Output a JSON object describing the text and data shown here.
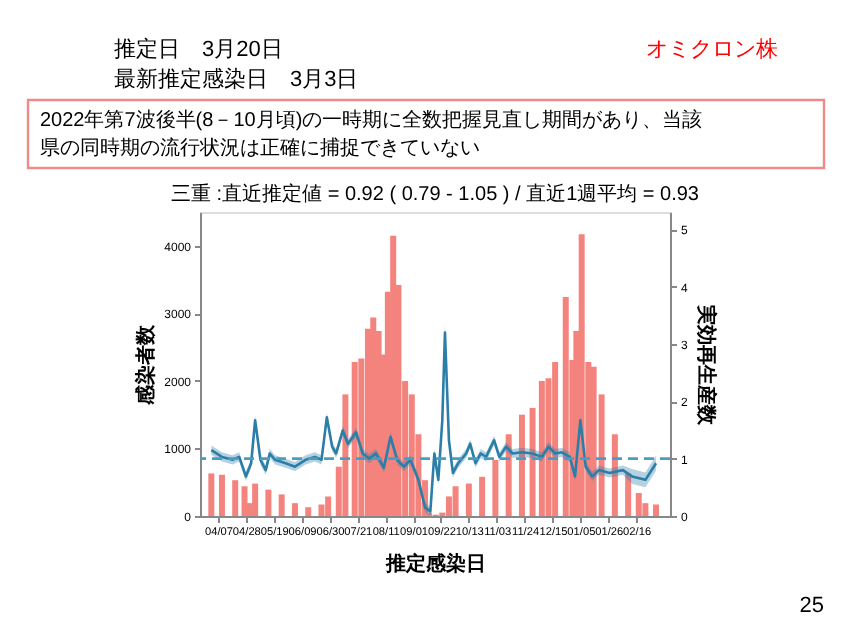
{
  "chart_data": {
    "type": "bar",
    "title": "三重 :直近推定値 = 0.92 ( 0.79 - 1.05 ) / 直近1週平均 = 0.93",
    "xlabel": "推定感染日",
    "ylabel": "感染者数",
    "y2label": "実効再生産数",
    "annotations": [
      "推定日　3月20日",
      "最新推定感染日　3月3日",
      "オミクロン株",
      "2022年第7波後半(8－10月頃)の一時期に全数把握見直し期間があり、当該県の同時期の流行状況は正確に捕捉できていない",
      "25"
    ],
    "xlim": [
      "2022-04-01",
      "2023-03-06"
    ],
    "xticks": [
      {
        "value": "2022-04-07",
        "label": "04/07"
      },
      {
        "value": "2022-04-28",
        "label": "04/28"
      },
      {
        "value": "2022-05-19",
        "label": "05/19"
      },
      {
        "value": "2022-06-09",
        "label": "06/09"
      },
      {
        "value": "2022-06-30",
        "label": "06/30"
      },
      {
        "value": "2022-07-21",
        "label": "07/21"
      },
      {
        "value": "2022-08-11",
        "label": "08/11"
      },
      {
        "value": "2022-09-01",
        "label": "09/01"
      },
      {
        "value": "2022-09-22",
        "label": "09/22"
      },
      {
        "value": "2022-10-13",
        "label": "10/13"
      },
      {
        "value": "2022-11-03",
        "label": "11/03"
      },
      {
        "value": "2022-11-24",
        "label": "11/24"
      },
      {
        "value": "2022-12-15",
        "label": "12/15"
      },
      {
        "value": "2023-01-05",
        "label": "01/05"
      },
      {
        "value": "2023-01-26",
        "label": "01/26"
      },
      {
        "value": "2023-02-16",
        "label": "02/16"
      }
    ],
    "ylim": [
      0,
      4500
    ],
    "yticks": [
      0,
      1000,
      2000,
      3000,
      4000
    ],
    "y2lim": [
      0,
      5.3
    ],
    "y2ticks": [
      0,
      1,
      2,
      3,
      4,
      5
    ],
    "grid": false,
    "ref_lines": [
      {
        "axis": "y2",
        "value": 1,
        "color": "#4a9cc0",
        "line_style": "dashed"
      }
    ],
    "series": [
      {
        "color": "#f4837d",
        "x": [
          "2022-04-02",
          "2022-04-10",
          "2022-04-20",
          "2022-04-27",
          "2022-05-01",
          "2022-05-05",
          "2022-05-15",
          "2022-05-25",
          "2022-06-04",
          "2022-06-14",
          "2022-06-24",
          "2022-06-29",
          "2022-07-07",
          "2022-07-12",
          "2022-07-19",
          "2022-07-24",
          "2022-07-29",
          "2022-08-02",
          "2022-08-06",
          "2022-08-10",
          "2022-08-13",
          "2022-08-17",
          "2022-08-21",
          "2022-08-26",
          "2022-08-31",
          "2022-09-05",
          "2022-09-10",
          "2022-09-13",
          "2022-09-18",
          "2022-09-23",
          "2022-09-28",
          "2022-10-03",
          "2022-10-13",
          "2022-10-23",
          "2022-11-02",
          "2022-11-12",
          "2022-11-22",
          "2022-11-30",
          "2022-12-07",
          "2022-12-12",
          "2022-12-17",
          "2022-12-25",
          "2022-12-30",
          "2023-01-02",
          "2023-01-06",
          "2023-01-11",
          "2023-01-15",
          "2023-01-21",
          "2023-01-31",
          "2023-02-10",
          "2023-02-18",
          "2023-02-23",
          "2023-03-03"
        ],
        "values": [
          630,
          610,
          530,
          440,
          190,
          480,
          390,
          320,
          190,
          130,
          170,
          290,
          730,
          1800,
          2280,
          2330,
          2770,
          2940,
          2740,
          2390,
          3320,
          4150,
          3420,
          2000,
          1800,
          1210,
          530,
          50,
          20,
          50,
          290,
          440,
          480,
          580,
          830,
          1210,
          1500,
          1600,
          2000,
          2040,
          2280,
          3240,
          2310,
          2740,
          4170,
          2280,
          2210,
          1800,
          1210,
          630,
          340,
          190,
          170
        ]
      },
      {
        "type": "line",
        "axis": "y2",
        "color": "#2b7ea8",
        "x": [
          "2022-04-02",
          "2022-04-10",
          "2022-04-18",
          "2022-04-23",
          "2022-04-28",
          "2022-05-02",
          "2022-05-05",
          "2022-05-09",
          "2022-05-13",
          "2022-05-16",
          "2022-05-20",
          "2022-05-28",
          "2022-06-04",
          "2022-06-12",
          "2022-06-19",
          "2022-06-24",
          "2022-06-28",
          "2022-07-02",
          "2022-07-05",
          "2022-07-10",
          "2022-07-14",
          "2022-07-20",
          "2022-07-25",
          "2022-07-30",
          "2022-08-04",
          "2022-08-10",
          "2022-08-15",
          "2022-08-20",
          "2022-08-25",
          "2022-08-30",
          "2022-09-05",
          "2022-09-10",
          "2022-09-14",
          "2022-09-17",
          "2022-09-20",
          "2022-09-23",
          "2022-09-25",
          "2022-09-28",
          "2022-10-01",
          "2022-10-05",
          "2022-10-11",
          "2022-10-14",
          "2022-10-18",
          "2022-10-22",
          "2022-10-26",
          "2022-11-01",
          "2022-11-05",
          "2022-11-10",
          "2022-11-15",
          "2022-11-22",
          "2022-11-30",
          "2022-12-07",
          "2022-12-12",
          "2022-12-17",
          "2022-12-22",
          "2022-12-28",
          "2023-01-01",
          "2023-01-05",
          "2023-01-09",
          "2023-01-14",
          "2023-01-19",
          "2023-01-27",
          "2023-02-06",
          "2023-02-13",
          "2023-02-23",
          "2023-03-03"
        ],
        "values": [
          1.15,
          1.03,
          0.98,
          1.03,
          0.69,
          0.92,
          1.67,
          0.98,
          0.8,
          1.09,
          0.98,
          0.92,
          0.86,
          0.98,
          1.03,
          0.98,
          1.72,
          1.21,
          1.09,
          1.49,
          1.26,
          1.46,
          1.09,
          1.0,
          1.09,
          0.84,
          1.38,
          0.98,
          0.86,
          0.98,
          0.63,
          0.15,
          0.08,
          1.09,
          0.63,
          1.67,
          3.2,
          1.32,
          0.75,
          0.92,
          1.09,
          1.26,
          0.92,
          1.09,
          1.03,
          1.32,
          1.03,
          1.21,
          1.09,
          1.11,
          1.09,
          1.03,
          1.21,
          1.09,
          1.11,
          1.03,
          0.69,
          1.67,
          0.86,
          0.69,
          0.8,
          0.75,
          0.8,
          0.69,
          0.63,
          0.92
        ],
        "lower": [
          1.07,
          0.95,
          0.9,
          0.95,
          0.61,
          0.84,
          1.59,
          0.9,
          0.72,
          1.01,
          0.9,
          0.84,
          0.78,
          0.9,
          0.95,
          0.9,
          1.64,
          1.13,
          1.01,
          1.41,
          1.18,
          1.38,
          1.01,
          0.92,
          1.01,
          0.76,
          1.3,
          0.9,
          0.78,
          0.9,
          0.55,
          0.07,
          0.0,
          1.01,
          0.55,
          1.59,
          3.05,
          1.24,
          0.67,
          0.84,
          1.01,
          1.18,
          0.84,
          1.01,
          0.95,
          1.24,
          0.95,
          1.13,
          1.01,
          1.03,
          1.01,
          0.95,
          1.13,
          1.01,
          1.03,
          0.95,
          0.61,
          1.59,
          0.78,
          0.61,
          0.72,
          0.67,
          0.72,
          0.56,
          0.5,
          0.79
        ],
        "upper": [
          1.23,
          1.11,
          1.06,
          1.11,
          0.77,
          1.0,
          1.75,
          1.06,
          0.88,
          1.17,
          1.06,
          1.0,
          0.94,
          1.06,
          1.11,
          1.06,
          1.8,
          1.29,
          1.17,
          1.57,
          1.34,
          1.54,
          1.17,
          1.08,
          1.17,
          0.92,
          1.46,
          1.06,
          0.94,
          1.06,
          0.71,
          0.23,
          0.16,
          1.17,
          0.71,
          1.75,
          3.35,
          1.4,
          0.83,
          1.0,
          1.17,
          1.34,
          1.0,
          1.17,
          1.11,
          1.4,
          1.11,
          1.29,
          1.17,
          1.19,
          1.17,
          1.11,
          1.29,
          1.17,
          1.19,
          1.11,
          0.77,
          1.75,
          0.94,
          0.77,
          0.88,
          0.83,
          0.88,
          0.82,
          0.76,
          1.05
        ]
      }
    ]
  }
}
